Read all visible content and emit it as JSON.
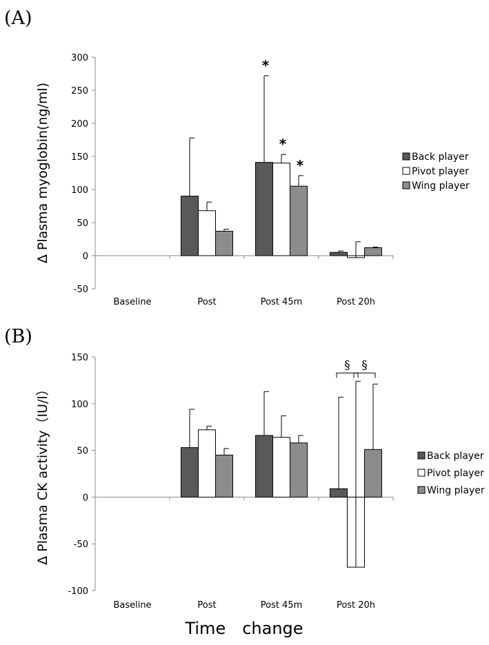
{
  "chart_data": [
    {
      "panel": "(A)",
      "type": "bar",
      "ylabel": "Δ Plasma myoglobin(ng/ml)",
      "ylim": [
        -50,
        300
      ],
      "yticks": [
        -50,
        0,
        50,
        100,
        150,
        200,
        250,
        300
      ],
      "categories": [
        "Baseline",
        "Post",
        "Post 45m",
        "Post 20h"
      ],
      "series": [
        {
          "name": "Back player",
          "color": "#595959",
          "values": [
            0,
            90,
            141,
            5
          ],
          "errors": [
            0,
            88,
            131,
            2
          ]
        },
        {
          "name": "Pivot player",
          "color": "#ffffff",
          "values": [
            0,
            68,
            140,
            -3
          ],
          "errors": [
            0,
            13,
            13,
            24
          ]
        },
        {
          "name": "Wing player",
          "color": "#8c8c8c",
          "values": [
            0,
            37,
            105,
            12
          ],
          "errors": [
            0,
            3,
            16,
            1
          ]
        }
      ],
      "annotations": [
        {
          "text": "*",
          "category": 2,
          "series": 0
        },
        {
          "text": "*",
          "category": 2,
          "series": 1
        },
        {
          "text": "*",
          "category": 2,
          "series": 2
        }
      ],
      "legend": "right"
    },
    {
      "panel": "(B)",
      "type": "bar",
      "ylabel": "Δ Plasma CK activity（IU/l）",
      "xlabel": "Time　change",
      "ylim": [
        -100,
        150
      ],
      "yticks": [
        -100,
        -50,
        0,
        50,
        100,
        150
      ],
      "categories": [
        "Baseline",
        "Post",
        "Post 45m",
        "Post 20h"
      ],
      "series": [
        {
          "name": "Back player",
          "color": "#595959",
          "values": [
            0,
            53,
            66,
            9
          ],
          "errors": [
            0,
            41,
            47,
            98
          ]
        },
        {
          "name": "Pivot player",
          "color": "#ffffff",
          "values": [
            0,
            72,
            64,
            -75
          ],
          "errors": [
            0,
            4,
            23,
            199
          ]
        },
        {
          "name": "Wing player",
          "color": "#8c8c8c",
          "values": [
            0,
            45,
            58,
            51
          ],
          "errors": [
            0,
            7,
            8,
            70
          ]
        }
      ],
      "annotations": [
        {
          "text": "§",
          "category": 3,
          "between": [
            0,
            1
          ]
        },
        {
          "text": "§",
          "category": 3,
          "between": [
            1,
            2
          ]
        }
      ],
      "legend": "right"
    }
  ]
}
